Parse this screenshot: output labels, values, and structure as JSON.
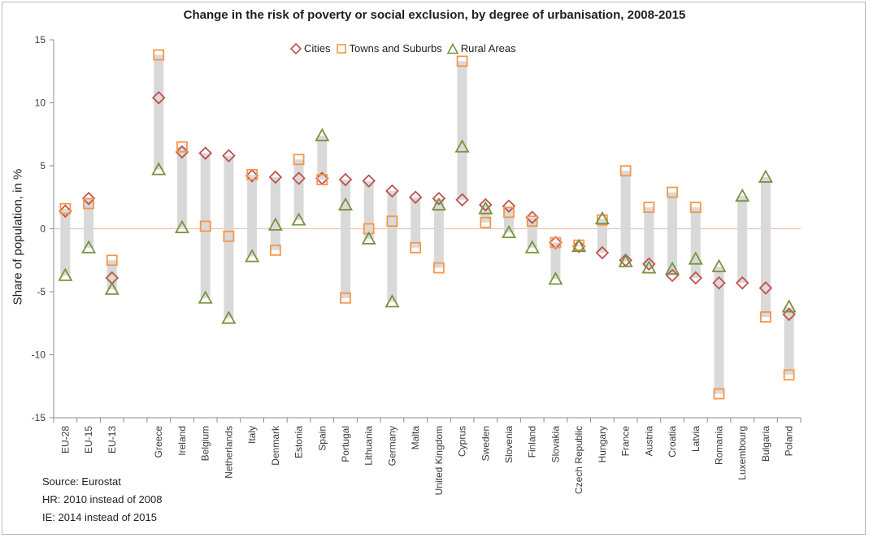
{
  "chart_data": {
    "type": "scatter",
    "title": "Change in the risk of poverty or social exclusion, by degree of urbanisation, 2008-2015",
    "xlabel": "",
    "ylabel": "Share of population, in %",
    "ylim": [
      -15,
      15
    ],
    "yticks": [
      -15,
      -10,
      -5,
      0,
      5,
      10,
      15
    ],
    "ytick_labels": [
      "-15",
      "-10",
      "-5",
      "0",
      "5",
      "10",
      "15"
    ],
    "legend_position": "top",
    "grid": false,
    "categories": [
      "EU-28",
      "EU-15",
      "EU-13",
      "",
      "Greece",
      "Ireland",
      "Belgium",
      "Netherlands",
      "Italy",
      "Denmark",
      "Estonia",
      "Spain",
      "Portugal",
      "Lithuania",
      "Germany",
      "Malta",
      "United Kingdom",
      "Cyprus",
      "Sweden",
      "Slovenia",
      "Finland",
      "Slovakia",
      "Czech Republic",
      "Hungary",
      "France",
      "Austria",
      "Croatia",
      "Latvia",
      "Romania",
      "Luxembourg",
      "Bulgaria",
      "Poland"
    ],
    "series": [
      {
        "name": "Cities",
        "marker": "diamond",
        "color": "#c0504d",
        "values": [
          1.4,
          2.4,
          -3.9,
          null,
          10.4,
          6.1,
          6.0,
          5.8,
          4.2,
          4.1,
          4.0,
          4.0,
          3.9,
          3.8,
          3.0,
          2.5,
          2.4,
          2.3,
          1.9,
          1.8,
          0.9,
          -1.1,
          -1.4,
          -1.9,
          -2.5,
          -2.8,
          -3.7,
          -3.9,
          -4.3,
          -4.3,
          -4.7,
          -6.8
        ]
      },
      {
        "name": "Towns and Suburbs",
        "marker": "square",
        "color": "#f79646",
        "values": [
          1.6,
          2.0,
          -2.5,
          null,
          13.8,
          6.5,
          0.2,
          -0.6,
          4.3,
          -1.7,
          5.5,
          3.9,
          -5.5,
          0.0,
          0.6,
          -1.5,
          -3.1,
          13.3,
          0.5,
          1.3,
          0.6,
          -1.1,
          -1.3,
          0.7,
          4.6,
          1.7,
          2.9,
          1.7,
          -13.1,
          null,
          -7.0,
          -11.6
        ]
      },
      {
        "name": "Rural Areas",
        "marker": "triangle",
        "color": "#77933c",
        "values": [
          -3.7,
          -1.5,
          -4.8,
          null,
          4.7,
          0.1,
          -5.5,
          -7.1,
          -2.2,
          0.3,
          0.7,
          7.4,
          1.9,
          -0.8,
          -5.8,
          null,
          1.9,
          6.5,
          1.6,
          -0.3,
          -1.5,
          -4.0,
          -1.4,
          0.8,
          -2.6,
          -3.1,
          -3.2,
          -2.4,
          -3.0,
          2.6,
          4.1,
          -6.2
        ]
      }
    ]
  },
  "notes": {
    "source": "Source: Eurostat",
    "hr": "HR: 2010 instead of 2008",
    "ie": "IE:  2014 instead of 2015"
  }
}
